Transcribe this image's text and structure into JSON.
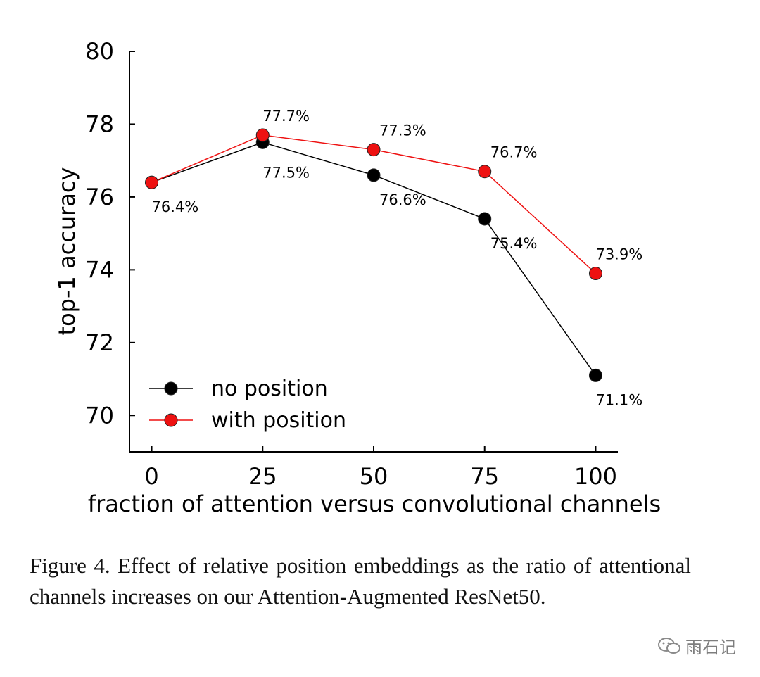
{
  "chart_data": {
    "type": "line",
    "x": [
      0,
      25,
      50,
      75,
      100
    ],
    "xlabel": "fraction of attention versus convolutional channels",
    "ylabel": "top-1 accuracy",
    "xticks": [
      "0",
      "25",
      "50",
      "75",
      "100"
    ],
    "yticks": [
      "70",
      "72",
      "74",
      "76",
      "78",
      "80"
    ],
    "ylim": [
      69,
      80
    ],
    "xlim": [
      -5,
      105
    ],
    "legend_position": "bottom-left",
    "series": [
      {
        "name": "no position",
        "color": "#000000",
        "values": [
          76.4,
          77.5,
          76.6,
          75.4,
          71.1
        ],
        "labels": [
          "76.4%",
          "77.5%",
          "76.6%",
          "75.4%",
          "71.1%"
        ]
      },
      {
        "name": "with position",
        "color": "#ee1111",
        "values": [
          76.4,
          77.7,
          77.3,
          76.7,
          73.9
        ],
        "labels": [
          "",
          "77.7%",
          "77.3%",
          "76.7%",
          "73.9%"
        ]
      }
    ]
  },
  "caption": "Figure 4. Effect of relative position embeddings as the ratio of attentional channels increases on our Attention-Augmented ResNet50.",
  "watermark": {
    "text": "雨石记",
    "icon": "wechat-icon"
  }
}
